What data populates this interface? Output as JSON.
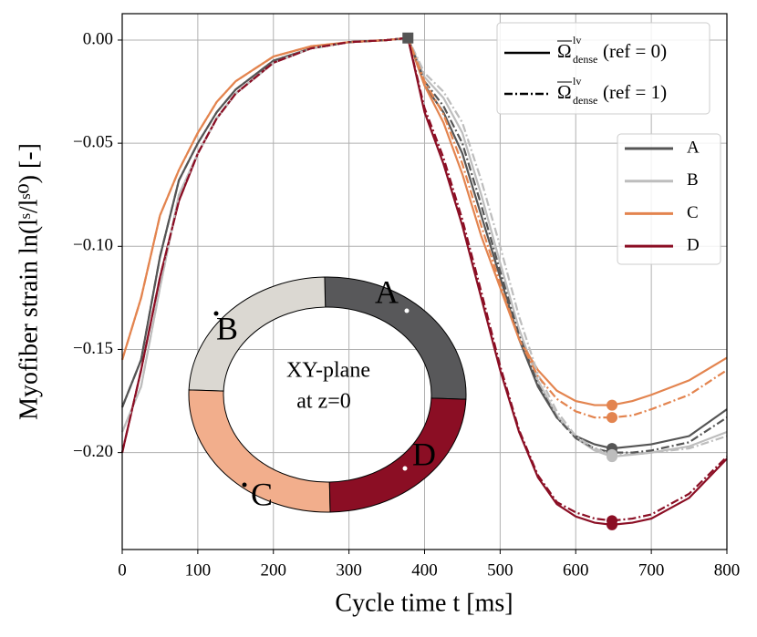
{
  "chart_data": {
    "type": "line",
    "xlabel": "Cycle time t [ms]",
    "ylabel": "Myofiber strain ln(lˢ/lˢ⁰) [-]",
    "xlim": [
      0,
      800
    ],
    "ylim": [
      -0.247,
      0.0128
    ],
    "xticks": [
      0,
      100,
      200,
      300,
      400,
      500,
      600,
      700,
      800
    ],
    "yticks": [
      {
        "value": 0,
        "label": "0.00"
      },
      {
        "value": -0.05,
        "label": "−0.05"
      },
      {
        "value": -0.1,
        "label": "−0.10"
      },
      {
        "value": -0.15,
        "label": "−0.15"
      },
      {
        "value": -0.2,
        "label": "−0.20"
      }
    ],
    "grid": true,
    "x": [
      0,
      25,
      50,
      75,
      100,
      125,
      150,
      200,
      250,
      300,
      350,
      378,
      400,
      425,
      450,
      475,
      500,
      525,
      550,
      575,
      600,
      625,
      648,
      675,
      700,
      750,
      800
    ],
    "start_marker_x": 378,
    "end_marker_x": 648,
    "series": [
      {
        "name": "A",
        "color": "#555555",
        "dash": "solid",
        "values": [
          -0.178,
          -0.155,
          -0.105,
          -0.068,
          -0.05,
          -0.035,
          -0.024,
          -0.01,
          -0.004,
          -0.001,
          0,
          0.001,
          -0.022,
          -0.035,
          -0.055,
          -0.085,
          -0.115,
          -0.145,
          -0.168,
          -0.183,
          -0.192,
          -0.196,
          -0.198,
          -0.197,
          -0.196,
          -0.192,
          -0.179
        ]
      },
      {
        "name": "B",
        "color": "#bdbdbd",
        "dash": "solid",
        "values": [
          -0.19,
          -0.168,
          -0.12,
          -0.075,
          -0.055,
          -0.038,
          -0.026,
          -0.011,
          -0.004,
          -0.001,
          0,
          0.001,
          -0.018,
          -0.028,
          -0.045,
          -0.075,
          -0.108,
          -0.14,
          -0.165,
          -0.182,
          -0.193,
          -0.199,
          -0.202,
          -0.201,
          -0.2,
          -0.197,
          -0.19
        ]
      },
      {
        "name": "C",
        "color": "#e3844f",
        "dash": "solid",
        "values": [
          -0.155,
          -0.125,
          -0.085,
          -0.063,
          -0.045,
          -0.03,
          -0.02,
          -0.008,
          -0.003,
          -0.001,
          0,
          0.001,
          -0.022,
          -0.04,
          -0.065,
          -0.095,
          -0.12,
          -0.145,
          -0.16,
          -0.17,
          -0.175,
          -0.177,
          -0.177,
          -0.175,
          -0.172,
          -0.165,
          -0.154
        ]
      },
      {
        "name": "D",
        "color": "#8b0e24",
        "dash": "solid",
        "values": [
          -0.2,
          -0.16,
          -0.115,
          -0.078,
          -0.055,
          -0.038,
          -0.026,
          -0.011,
          -0.004,
          -0.001,
          0,
          0.001,
          -0.035,
          -0.06,
          -0.09,
          -0.125,
          -0.16,
          -0.19,
          -0.212,
          -0.225,
          -0.231,
          -0.234,
          -0.235,
          -0.234,
          -0.232,
          -0.222,
          -0.203
        ]
      },
      {
        "color": "#555555",
        "dash": "dashdot",
        "values": [
          -0.178,
          -0.155,
          -0.105,
          -0.068,
          -0.05,
          -0.035,
          -0.024,
          -0.01,
          -0.004,
          -0.001,
          0,
          0.001,
          -0.02,
          -0.032,
          -0.05,
          -0.08,
          -0.112,
          -0.143,
          -0.167,
          -0.183,
          -0.193,
          -0.198,
          -0.2,
          -0.2,
          -0.199,
          -0.195,
          -0.183
        ]
      },
      {
        "color": "#bdbdbd",
        "dash": "dashdot",
        "values": [
          -0.19,
          -0.168,
          -0.12,
          -0.075,
          -0.055,
          -0.038,
          -0.026,
          -0.011,
          -0.004,
          -0.001,
          0,
          0.001,
          -0.016,
          -0.025,
          -0.04,
          -0.068,
          -0.1,
          -0.134,
          -0.162,
          -0.18,
          -0.192,
          -0.198,
          -0.201,
          -0.201,
          -0.2,
          -0.198,
          -0.192
        ]
      },
      {
        "color": "#e3844f",
        "dash": "dashdot",
        "values": [
          -0.155,
          -0.125,
          -0.085,
          -0.063,
          -0.045,
          -0.03,
          -0.02,
          -0.008,
          -0.003,
          -0.001,
          0,
          0.001,
          -0.02,
          -0.036,
          -0.06,
          -0.09,
          -0.118,
          -0.145,
          -0.163,
          -0.174,
          -0.18,
          -0.183,
          -0.183,
          -0.182,
          -0.179,
          -0.172,
          -0.16
        ]
      },
      {
        "color": "#8b0e24",
        "dash": "dashdot",
        "values": [
          -0.2,
          -0.16,
          -0.115,
          -0.078,
          -0.055,
          -0.038,
          -0.026,
          -0.011,
          -0.004,
          -0.001,
          0,
          0.001,
          -0.033,
          -0.057,
          -0.087,
          -0.122,
          -0.158,
          -0.189,
          -0.211,
          -0.224,
          -0.229,
          -0.232,
          -0.233,
          -0.232,
          -0.23,
          -0.22,
          -0.202
        ]
      }
    ],
    "style_legend": [
      {
        "symbol": "Ω",
        "sup": "lv",
        "sub": "dense",
        "text": "(ref = 0)",
        "dash": "solid"
      },
      {
        "symbol": "Ω",
        "sup": "lv",
        "sub": "dense",
        "text": "(ref = 1)",
        "dash": "dashdot"
      }
    ],
    "inset": {
      "title": [
        "XY-plane",
        "at z=0"
      ],
      "regions": [
        {
          "label": "A",
          "color": "#58585a"
        },
        {
          "label": "B",
          "color": "#dbd8d2"
        },
        {
          "label": "C",
          "color": "#f2ae8c"
        },
        {
          "label": "D",
          "color": "#8b0e24"
        }
      ]
    }
  }
}
